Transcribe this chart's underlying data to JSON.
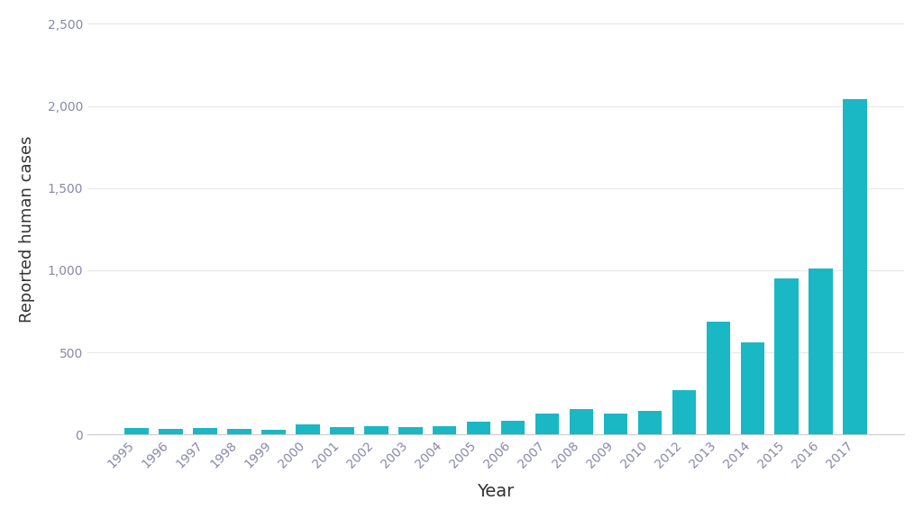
{
  "years": [
    "1995",
    "1996",
    "1997",
    "1998",
    "1999",
    "2000",
    "2001",
    "2002",
    "2003",
    "2004",
    "2005",
    "2006",
    "2007",
    "2008",
    "2009",
    "2010",
    "2012",
    "2013",
    "2014",
    "2015",
    "2016",
    "2017"
  ],
  "values": [
    40,
    35,
    38,
    37,
    32,
    60,
    45,
    50,
    48,
    50,
    80,
    85,
    130,
    155,
    130,
    145,
    270,
    690,
    560,
    950,
    1010,
    2040
  ],
  "bar_color": "#1ab8c4",
  "xlabel": "Year",
  "ylabel": "Reported human cases",
  "ylim": [
    0,
    2500
  ],
  "yticks": [
    0,
    500,
    1000,
    1500,
    2000,
    2500
  ],
  "background_color": "#ffffff",
  "axis_color": "#cccccc",
  "label_color": "#333333",
  "tick_color": "#8888aa",
  "ylabel_fontsize": 13,
  "xlabel_fontsize": 14,
  "tick_fontsize": 10
}
